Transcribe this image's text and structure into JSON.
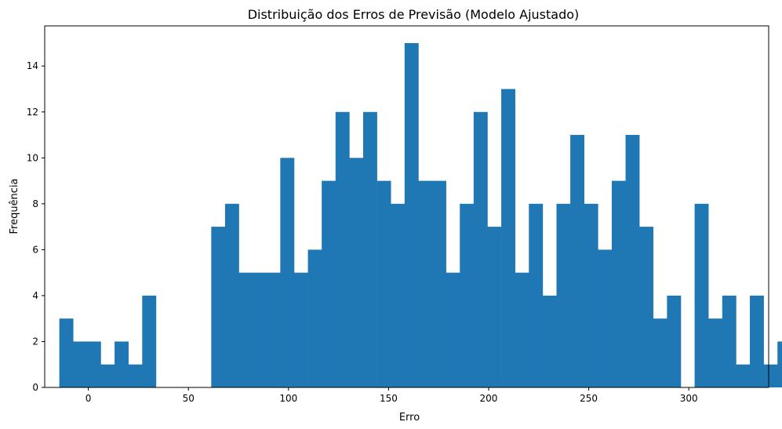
{
  "chart_data": {
    "type": "bar",
    "title": "Distribuição dos Erros de Previsão (Modelo Ajustado)",
    "xlabel": "Erro",
    "ylabel": "Frequência",
    "bar_color": "#1f77b4",
    "grid": false,
    "xlim": [
      -21.8,
      339.9
    ],
    "ylim": [
      0,
      15.75
    ],
    "xticks": [
      0,
      50,
      100,
      150,
      200,
      250,
      300
    ],
    "yticks": [
      0,
      2,
      4,
      6,
      8,
      10,
      12,
      14
    ],
    "bin_start": -14.5,
    "bin_width": 6.9,
    "values": [
      3,
      2,
      2,
      1,
      2,
      1,
      4,
      0,
      0,
      0,
      0,
      7,
      8,
      5,
      5,
      5,
      10,
      5,
      6,
      9,
      12,
      10,
      12,
      9,
      8,
      15,
      9,
      9,
      5,
      8,
      12,
      7,
      13,
      5,
      8,
      4,
      8,
      11,
      8,
      6,
      9,
      11,
      7,
      3,
      4,
      0,
      8,
      3,
      4,
      1,
      4,
      1,
      2
    ]
  }
}
